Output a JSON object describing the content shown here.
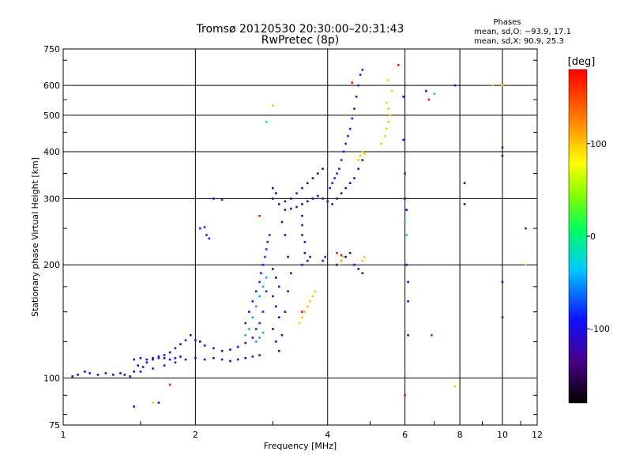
{
  "chart_data": {
    "type": "scatter",
    "title": "Tromsø 20120530 20:30:00–20:31:43",
    "subtitle": "RwPretec (8p)",
    "phases": {
      "heading": "Phases",
      "line_o": "mean, sd,O: −93.9, 17.1",
      "line_x": "mean, sd,X:  90.9, 25.3"
    },
    "xlabel": "Frequency [MHz]",
    "ylabel": "Stationary phase Virtual Height [km]",
    "x_scale": "log",
    "y_scale": "log",
    "xlim": [
      1,
      12
    ],
    "ylim": [
      75,
      750
    ],
    "x_ticks": [
      1,
      2,
      4,
      6,
      8,
      10,
      12
    ],
    "x_tick_labels": [
      "1",
      "2",
      "4",
      "6",
      "8",
      "10",
      "12"
    ],
    "y_ticks": [
      75,
      100,
      200,
      300,
      400,
      500,
      600,
      750
    ],
    "y_tick_labels": [
      "75",
      "100",
      "200",
      "300",
      "400",
      "500",
      "600",
      "750"
    ],
    "grid": true,
    "colorbar": {
      "label": "[deg]",
      "range": [
        -180,
        180
      ],
      "ticks": [
        100,
        0,
        -100
      ],
      "tick_labels": [
        "100",
        "0",
        "-100"
      ]
    },
    "series": [
      {
        "phase": -105,
        "points": [
          [
            1.05,
            101
          ],
          [
            1.08,
            102
          ],
          [
            1.12,
            104
          ],
          [
            1.15,
            103
          ],
          [
            1.2,
            102
          ],
          [
            1.25,
            103
          ],
          [
            1.3,
            102
          ],
          [
            1.35,
            103
          ],
          [
            1.38,
            102
          ],
          [
            1.42,
            101
          ],
          [
            1.45,
            104
          ],
          [
            1.48,
            108
          ],
          [
            1.52,
            107
          ],
          [
            1.55,
            110
          ],
          [
            1.6,
            112
          ],
          [
            1.65,
            113
          ],
          [
            1.7,
            115
          ],
          [
            1.75,
            117
          ],
          [
            1.8,
            120
          ],
          [
            1.85,
            123
          ],
          [
            1.9,
            126
          ],
          [
            1.95,
            130
          ],
          [
            2.0,
            126
          ],
          [
            2.05,
            125
          ],
          [
            2.1,
            122
          ],
          [
            2.2,
            120
          ],
          [
            2.3,
            118
          ],
          [
            2.4,
            119
          ],
          [
            2.5,
            121
          ],
          [
            2.6,
            124
          ],
          [
            2.7,
            128
          ],
          [
            1.5,
            104
          ],
          [
            1.6,
            106
          ],
          [
            1.7,
            108
          ],
          [
            1.8,
            110
          ],
          [
            1.9,
            112
          ],
          [
            2.0,
            113
          ],
          [
            2.1,
            112
          ],
          [
            2.2,
            113
          ],
          [
            2.3,
            112
          ],
          [
            2.4,
            111
          ],
          [
            2.5,
            112
          ],
          [
            2.6,
            113
          ],
          [
            2.7,
            114
          ],
          [
            2.8,
            115
          ],
          [
            1.45,
            112
          ],
          [
            1.5,
            113
          ],
          [
            1.55,
            112
          ],
          [
            1.6,
            113
          ],
          [
            1.65,
            114
          ],
          [
            1.7,
            113
          ],
          [
            1.75,
            112
          ],
          [
            1.8,
            113
          ],
          [
            1.85,
            114
          ]
        ]
      },
      {
        "phase": -85,
        "points": [
          [
            2.05,
            250
          ],
          [
            2.1,
            252
          ],
          [
            2.12,
            240
          ],
          [
            2.15,
            235
          ],
          [
            2.2,
            300
          ],
          [
            2.3,
            298
          ],
          [
            2.6,
            140
          ],
          [
            2.65,
            150
          ],
          [
            2.7,
            160
          ],
          [
            2.75,
            170
          ],
          [
            2.8,
            180
          ],
          [
            2.82,
            190
          ],
          [
            2.85,
            200
          ],
          [
            2.88,
            210
          ],
          [
            2.9,
            220
          ],
          [
            2.92,
            230
          ],
          [
            2.95,
            240
          ],
          [
            2.9,
            170
          ],
          [
            2.85,
            150
          ],
          [
            2.8,
            140
          ],
          [
            2.75,
            135
          ],
          [
            3.9,
            205
          ],
          [
            3.95,
            210
          ],
          [
            4.05,
            320
          ],
          [
            4.1,
            330
          ],
          [
            4.15,
            340
          ],
          [
            4.2,
            350
          ],
          [
            4.25,
            360
          ],
          [
            4.3,
            380
          ],
          [
            4.35,
            400
          ],
          [
            4.4,
            420
          ],
          [
            4.45,
            440
          ],
          [
            4.5,
            460
          ],
          [
            4.55,
            490
          ],
          [
            4.6,
            520
          ],
          [
            4.65,
            560
          ],
          [
            4.7,
            600
          ],
          [
            4.75,
            640
          ],
          [
            4.8,
            660
          ]
        ]
      },
      {
        "phase": -120,
        "points": [
          [
            3.1,
            290
          ],
          [
            3.2,
            295
          ],
          [
            3.3,
            300
          ],
          [
            3.4,
            310
          ],
          [
            3.5,
            320
          ],
          [
            3.6,
            330
          ],
          [
            3.7,
            340
          ],
          [
            3.8,
            350
          ],
          [
            3.9,
            360
          ],
          [
            3.2,
            280
          ],
          [
            3.3,
            282
          ],
          [
            3.4,
            285
          ],
          [
            3.5,
            290
          ],
          [
            3.6,
            295
          ],
          [
            3.7,
            300
          ],
          [
            3.8,
            305
          ],
          [
            3.9,
            300
          ],
          [
            4.0,
            295
          ],
          [
            3.0,
            300
          ],
          [
            3.05,
            310
          ],
          [
            3.0,
            320
          ],
          [
            3.5,
            270
          ],
          [
            3.5,
            255
          ],
          [
            3.5,
            240
          ],
          [
            3.55,
            230
          ],
          [
            3.55,
            215
          ],
          [
            3.6,
            205
          ],
          [
            3.65,
            210
          ],
          [
            3.5,
            200
          ],
          [
            3.0,
            195
          ],
          [
            3.05,
            185
          ],
          [
            3.1,
            175
          ],
          [
            3.0,
            165
          ],
          [
            3.05,
            155
          ],
          [
            3.1,
            145
          ],
          [
            3.0,
            135
          ],
          [
            3.05,
            125
          ],
          [
            3.1,
            118
          ],
          [
            3.15,
            130
          ],
          [
            3.2,
            150
          ],
          [
            3.25,
            170
          ],
          [
            3.3,
            190
          ],
          [
            3.25,
            210
          ],
          [
            3.2,
            240
          ],
          [
            3.15,
            260
          ],
          [
            4.2,
            200
          ],
          [
            4.3,
            205
          ],
          [
            4.4,
            210
          ],
          [
            4.5,
            215
          ],
          [
            4.6,
            200
          ],
          [
            4.7,
            195
          ],
          [
            4.8,
            190
          ],
          [
            4.1,
            290
          ],
          [
            4.2,
            300
          ],
          [
            4.3,
            310
          ],
          [
            4.4,
            320
          ],
          [
            4.5,
            330
          ],
          [
            4.6,
            340
          ],
          [
            4.7,
            360
          ],
          [
            4.8,
            380
          ]
        ]
      },
      {
        "phase": -45,
        "points": [
          [
            2.6,
            130
          ],
          [
            2.65,
            135
          ],
          [
            2.7,
            145
          ],
          [
            2.75,
            155
          ],
          [
            2.8,
            165
          ],
          [
            2.85,
            175
          ],
          [
            2.9,
            185
          ],
          [
            2.75,
            125
          ],
          [
            2.8,
            128
          ],
          [
            2.85,
            132
          ]
        ]
      },
      {
        "phase": 100,
        "points": [
          [
            3.45,
            140
          ],
          [
            3.5,
            145
          ],
          [
            3.55,
            150
          ],
          [
            3.6,
            155
          ],
          [
            3.65,
            160
          ],
          [
            3.7,
            165
          ],
          [
            3.75,
            170
          ],
          [
            4.7,
            380
          ],
          [
            4.75,
            390
          ],
          [
            4.8,
            400
          ],
          [
            4.85,
            395
          ],
          [
            5.3,
            420
          ],
          [
            5.4,
            440
          ],
          [
            5.45,
            460
          ],
          [
            5.5,
            480
          ],
          [
            5.55,
            500
          ],
          [
            5.5,
            520
          ],
          [
            5.45,
            540
          ],
          [
            5.6,
            580
          ],
          [
            5.5,
            620
          ],
          [
            4.3,
            205
          ],
          [
            4.35,
            210
          ],
          [
            4.25,
            200
          ],
          [
            4.8,
            205
          ],
          [
            4.85,
            210
          ],
          [
            3.0,
            530
          ],
          [
            9.5,
            600
          ],
          [
            10.0,
            600
          ],
          [
            11.3,
            200
          ],
          [
            7.8,
            95
          ],
          [
            1.6,
            86
          ]
        ]
      },
      {
        "phase": 175,
        "points": [
          [
            4.2,
            215
          ],
          [
            4.3,
            212
          ],
          [
            5.8,
            680
          ],
          [
            6.0,
            90
          ],
          [
            1.75,
            96
          ],
          [
            2.8,
            270
          ],
          [
            6.8,
            550
          ],
          [
            6.9,
            130
          ],
          [
            4.55,
            610
          ],
          [
            3.5,
            150
          ]
        ]
      },
      {
        "phase": -95,
        "points": [
          [
            5.95,
            560
          ],
          [
            5.95,
            430
          ],
          [
            6.0,
            350
          ],
          [
            6.0,
            300
          ],
          [
            6.05,
            280
          ],
          [
            6.05,
            200
          ],
          [
            6.1,
            180
          ],
          [
            6.1,
            160
          ],
          [
            6.1,
            130
          ],
          [
            8.2,
            330
          ],
          [
            8.2,
            290
          ],
          [
            10.0,
            410
          ],
          [
            10.0,
            390
          ],
          [
            10.0,
            180
          ],
          [
            10.0,
            145
          ],
          [
            11.3,
            250
          ],
          [
            6.7,
            580
          ],
          [
            7.8,
            600
          ],
          [
            1.45,
            84
          ],
          [
            1.65,
            86
          ]
        ]
      },
      {
        "phase": -20,
        "points": [
          [
            2.9,
            480
          ],
          [
            6.0,
            260
          ],
          [
            6.05,
            240
          ],
          [
            7.0,
            570
          ]
        ]
      }
    ]
  }
}
